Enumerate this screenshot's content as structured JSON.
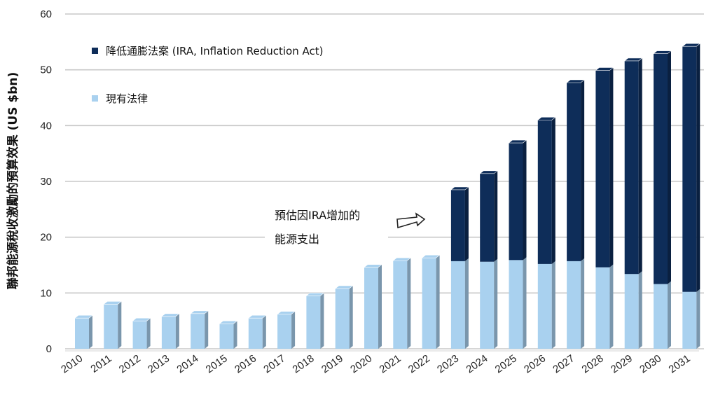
{
  "chart_data": {
    "type": "bar",
    "stacked": true,
    "ylabel": "聯邦能源稅收激勵的預算效果 (US $bn)",
    "ylim": [
      0,
      60
    ],
    "yticks": [
      0,
      10,
      20,
      30,
      40,
      50,
      60
    ],
    "grid": true,
    "legend_position": "top-left",
    "categories": [
      "2010",
      "2011",
      "2012",
      "2013",
      "2014",
      "2015",
      "2016",
      "2017",
      "2018",
      "2019",
      "2020",
      "2021",
      "2022",
      "2023",
      "2024",
      "2025",
      "2026",
      "2027",
      "2028",
      "2029",
      "2030",
      "2031"
    ],
    "series": [
      {
        "name": "現有法律",
        "color": "#a9d1ef",
        "values": [
          5.5,
          8,
          5,
          5.8,
          6.3,
          4.5,
          5.5,
          6.2,
          9.5,
          10.8,
          14.6,
          15.8,
          16.3,
          15.7,
          15.6,
          15.9,
          15.2,
          15.7,
          14.6,
          13.4,
          11.6,
          10.2
        ]
      },
      {
        "name": "降低通膨法案 (IRA, Inflation Reduction Act)",
        "color": "#0e2d59",
        "values": [
          0,
          0,
          0,
          0,
          0,
          0,
          0,
          0,
          0,
          0,
          0,
          0,
          0,
          12.8,
          15.8,
          21,
          25.8,
          32,
          35.3,
          38.2,
          41.3,
          44
        ]
      }
    ],
    "annotation": {
      "line1": "預估因IRA增加的",
      "line2": "能源支出"
    }
  }
}
